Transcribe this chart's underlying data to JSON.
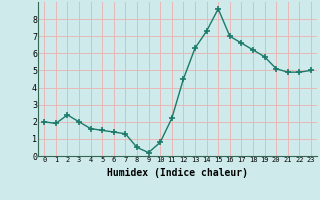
{
  "x": [
    0,
    1,
    2,
    3,
    4,
    5,
    6,
    7,
    8,
    9,
    10,
    11,
    12,
    13,
    14,
    15,
    16,
    17,
    18,
    19,
    20,
    21,
    22,
    23
  ],
  "y": [
    2.0,
    1.9,
    2.4,
    2.0,
    1.6,
    1.5,
    1.4,
    1.3,
    0.5,
    0.2,
    0.8,
    2.2,
    4.5,
    6.3,
    7.3,
    8.6,
    7.0,
    6.6,
    6.2,
    5.8,
    5.1,
    4.9,
    4.9,
    5.0
  ],
  "xlabel": "Humidex (Indice chaleur)",
  "ylim": [
    0,
    9
  ],
  "xlim": [
    -0.5,
    23.5
  ],
  "yticks": [
    0,
    1,
    2,
    3,
    4,
    5,
    6,
    7,
    8
  ],
  "xticks": [
    0,
    1,
    2,
    3,
    4,
    5,
    6,
    7,
    8,
    9,
    10,
    11,
    12,
    13,
    14,
    15,
    16,
    17,
    18,
    19,
    20,
    21,
    22,
    23
  ],
  "line_color": "#1a7a6a",
  "marker": "+",
  "bg_color": "#ceeaea",
  "grid_color": "#e8b8b8",
  "xlabel_fontsize": 7,
  "tick_fontsize": 5,
  "ytick_fontsize": 6
}
